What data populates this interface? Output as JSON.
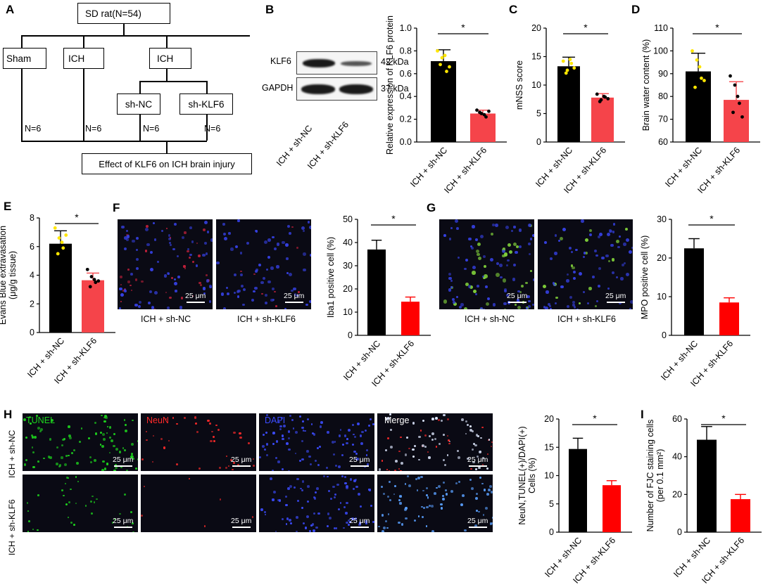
{
  "panel_labels": {
    "a": "A",
    "b": "B",
    "c": "C",
    "d": "D",
    "e": "E",
    "f": "F",
    "g": "G",
    "h": "H",
    "i": "I"
  },
  "flowchart": {
    "top": "SD rat(N=54)",
    "sham": "Sham",
    "ich1": "ICH",
    "ich2": "ICH",
    "shnc": "sh-NC",
    "shklf6": "sh-KLF6",
    "n1": "N=6",
    "n2": "N=6",
    "n3": "N=6",
    "n4": "N=6",
    "bottom": "Effect  of KLF6 on ICH  brain injury"
  },
  "western": {
    "klf6": "KLF6",
    "gapdh": "GAPDH",
    "kda42": "42 kDa",
    "kda37": "37 kDa",
    "lane1": "ICH + sh-NC",
    "lane2": "ICH + sh-KLF6"
  },
  "scale_bar": "25 μm",
  "micro_captions": {
    "nc": "ICH + sh-NC",
    "klf6": "ICH + sh-KLF6"
  },
  "h_channels": {
    "tunel": "TUNEL",
    "neun": "NeuN",
    "dapi": "DAPI",
    "merge": "Merge"
  },
  "h_rows": {
    "nc": "ICH + sh-NC",
    "klf6": "ICH + sh-KLF6"
  },
  "colors": {
    "black_bar": "#000000",
    "red_bar": "#f5444a",
    "bright_red_bar": "#ff0000",
    "yellow_dot": "#ffe600",
    "tunel": "#1ed61e",
    "neun": "#ff2a2a",
    "dapi": "#3c4cff"
  },
  "chart_data": [
    {
      "panel": "B",
      "type": "bar",
      "categories": [
        "ICH + sh-NC",
        "ICH + sh-KLF6"
      ],
      "values": [
        0.71,
        0.25
      ],
      "errors": [
        0.1,
        0.03
      ],
      "ylabel": "Relative expression of KLF6 protein",
      "ylim": [
        0,
        1.0
      ],
      "yticks": [
        "0.0",
        "0.2",
        "0.4",
        "0.6",
        "0.8",
        "1.0"
      ],
      "annotation": "*",
      "points": [
        [
          0.8,
          0.74,
          0.62,
          0.68,
          0.76,
          0.66
        ],
        [
          0.28,
          0.25,
          0.22,
          0.26,
          0.24,
          0.27
        ]
      ]
    },
    {
      "panel": "C",
      "type": "bar",
      "categories": [
        "ICH + sh-NC",
        "ICH + sh-KLF6"
      ],
      "values": [
        13.3,
        7.8
      ],
      "errors": [
        1.6,
        0.7
      ],
      "ylabel": "mNSS score",
      "ylim": [
        0,
        20
      ],
      "yticks": [
        "0",
        "5",
        "10",
        "15",
        "20"
      ],
      "annotation": "*",
      "points": [
        [
          14.2,
          12.6,
          13.8,
          12.1,
          14.5,
          13.0
        ],
        [
          8.4,
          7.4,
          7.9,
          7.1,
          8.0,
          7.6
        ]
      ]
    },
    {
      "panel": "D",
      "type": "bar",
      "categories": [
        "ICH + sh-NC",
        "ICH + sh-KLF6"
      ],
      "values": [
        91,
        78.5
      ],
      "errors": [
        8,
        8
      ],
      "ylabel": "Brain water content (%)",
      "ylim": [
        60,
        110
      ],
      "yticks": [
        "60",
        "70",
        "80",
        "90",
        "100",
        "110"
      ],
      "annotation": "*",
      "points": [
        [
          100,
          96,
          88,
          84,
          93,
          87
        ],
        [
          89,
          85,
          77,
          73,
          80,
          71
        ]
      ]
    },
    {
      "panel": "E",
      "type": "bar",
      "categories": [
        "ICH + sh-NC",
        "ICH + sh-KLF6"
      ],
      "values": [
        6.2,
        3.65
      ],
      "errors": [
        0.9,
        0.5
      ],
      "ylabel": "Evans Blue extravasation (μg/g tissue)",
      "ylim": [
        0,
        8
      ],
      "yticks": [
        "0",
        "2",
        "4",
        "6",
        "8"
      ],
      "annotation": "*",
      "points": [
        [
          7.3,
          6.6,
          5.9,
          5.5,
          6.3,
          6.8
        ],
        [
          4.4,
          3.9,
          3.5,
          3.2,
          3.7,
          3.6
        ]
      ]
    },
    {
      "panel": "F",
      "type": "bar",
      "categories": [
        "ICH + sh-NC",
        "ICH + sh-KLF6"
      ],
      "values": [
        37,
        14.5
      ],
      "errors": [
        4,
        2
      ],
      "ylabel": "Iba1 positive cell (%)",
      "ylim": [
        0,
        50
      ],
      "yticks": [
        "0",
        "10",
        "20",
        "30",
        "40",
        "50"
      ],
      "annotation": "*"
    },
    {
      "panel": "G",
      "type": "bar",
      "categories": [
        "ICH + sh-NC",
        "ICH + sh-KLF6"
      ],
      "values": [
        22.5,
        8.5
      ],
      "errors": [
        2.5,
        1.2
      ],
      "ylabel": "MPO positive cell (%)",
      "ylim": [
        0,
        30
      ],
      "yticks": [
        "0",
        "10",
        "20",
        "30"
      ],
      "annotation": "*"
    },
    {
      "panel": "H",
      "type": "bar",
      "categories": [
        "ICH + sh-NC",
        "ICH + sh-KLF6"
      ],
      "values": [
        14.7,
        8.3
      ],
      "errors": [
        1.9,
        0.8
      ],
      "ylabel": "NeuN,TUNEL(+)/DAPI(+) Cells (%)",
      "ylim": [
        0,
        20
      ],
      "yticks": [
        "0",
        "5",
        "10",
        "15",
        "20"
      ],
      "annotation": "*"
    },
    {
      "panel": "I",
      "type": "bar",
      "categories": [
        "ICH + sh-NC",
        "ICH + sh-KLF6"
      ],
      "values": [
        49,
        17.5
      ],
      "errors": [
        7,
        2.5
      ],
      "ylabel": "Number of FJC staining cells (per 0.1 mm²)",
      "ylim": [
        0,
        60
      ],
      "yticks": [
        "0",
        "20",
        "40",
        "60"
      ],
      "annotation": "*"
    }
  ]
}
